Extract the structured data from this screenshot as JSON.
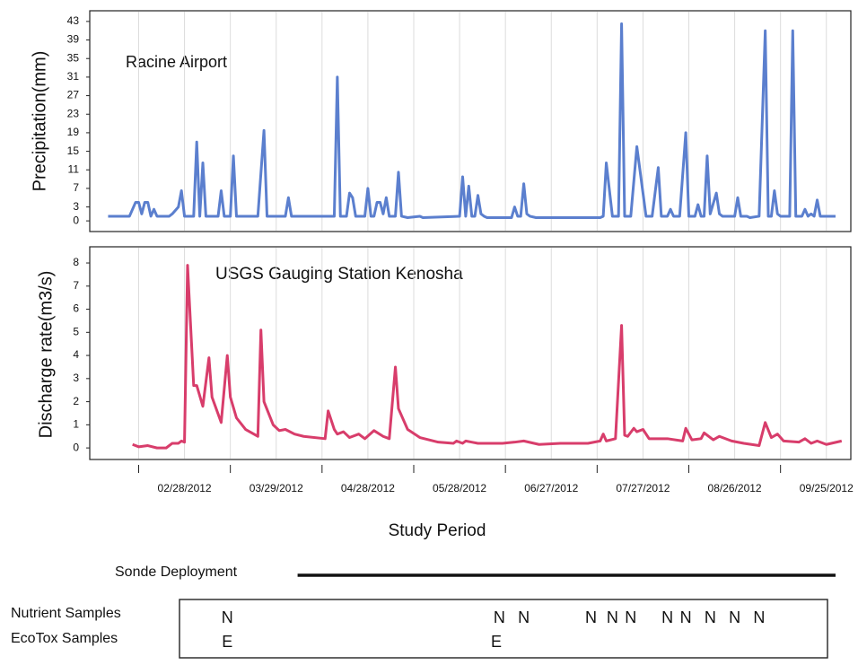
{
  "chart_data": [
    {
      "type": "line",
      "title": "Racine Airport",
      "ylabel": "Precipitation(mm)",
      "xlim": [
        "2012-01-28",
        "2012-10-03"
      ],
      "ylim": [
        -2.3,
        45.3
      ],
      "yticks": [
        0,
        3,
        7,
        11,
        15,
        19,
        23,
        27,
        31,
        35,
        39,
        43
      ],
      "grid": true,
      "series": [
        {
          "color": "#5b7fce",
          "x": [
            "2012-02-03",
            "2012-02-10",
            "2012-02-12",
            "2012-02-13",
            "2012-02-14",
            "2012-02-15",
            "2012-02-16",
            "2012-02-17",
            "2012-02-18",
            "2012-02-19",
            "2012-02-23",
            "2012-02-24",
            "2012-02-26",
            "2012-02-27",
            "2012-02-28",
            "2012-03-02",
            "2012-03-03",
            "2012-03-04",
            "2012-03-05",
            "2012-03-06",
            "2012-03-10",
            "2012-03-11",
            "2012-03-12",
            "2012-03-14",
            "2012-03-15",
            "2012-03-16",
            "2012-03-23",
            "2012-03-25",
            "2012-03-26",
            "2012-04-01",
            "2012-04-02",
            "2012-04-03",
            "2012-04-17",
            "2012-04-18",
            "2012-04-19",
            "2012-04-21",
            "2012-04-22",
            "2012-04-23",
            "2012-04-24",
            "2012-04-27",
            "2012-04-28",
            "2012-04-29",
            "2012-04-30",
            "2012-05-01",
            "2012-05-02",
            "2012-05-03",
            "2012-05-04",
            "2012-05-05",
            "2012-05-07",
            "2012-05-08",
            "2012-05-09",
            "2012-05-11",
            "2012-05-15",
            "2012-05-16",
            "2012-05-28",
            "2012-05-29",
            "2012-05-30",
            "2012-05-31",
            "2012-06-01",
            "2012-06-02",
            "2012-06-03",
            "2012-06-04",
            "2012-06-05",
            "2012-06-06",
            "2012-06-14",
            "2012-06-15",
            "2012-06-16",
            "2012-06-17",
            "2012-06-18",
            "2012-06-19",
            "2012-06-20",
            "2012-06-22",
            "2012-07-13",
            "2012-07-14",
            "2012-07-15",
            "2012-07-17",
            "2012-07-18",
            "2012-07-19",
            "2012-07-20",
            "2012-07-21",
            "2012-07-23",
            "2012-07-25",
            "2012-07-27",
            "2012-07-28",
            "2012-07-30",
            "2012-08-01",
            "2012-08-02",
            "2012-08-04",
            "2012-08-05",
            "2012-08-06",
            "2012-08-08",
            "2012-08-10",
            "2012-08-11",
            "2012-08-13",
            "2012-08-14",
            "2012-08-15",
            "2012-08-16",
            "2012-08-17",
            "2012-08-18",
            "2012-08-20",
            "2012-08-21",
            "2012-08-22",
            "2012-08-26",
            "2012-08-27",
            "2012-08-28",
            "2012-08-30",
            "2012-08-31",
            "2012-09-03",
            "2012-09-05",
            "2012-09-06",
            "2012-09-07",
            "2012-09-08",
            "2012-09-09",
            "2012-09-10",
            "2012-09-13",
            "2012-09-14",
            "2012-09-15",
            "2012-09-17",
            "2012-09-18",
            "2012-09-19",
            "2012-09-20",
            "2012-09-21",
            "2012-09-22",
            "2012-09-23",
            "2012-09-28"
          ],
          "values": [
            1,
            1,
            4,
            4,
            1.5,
            4,
            4,
            1,
            2.5,
            1,
            1,
            1.5,
            3,
            6.5,
            1,
            1,
            17,
            1,
            12.5,
            1,
            1,
            6.5,
            1,
            1,
            14,
            1,
            1,
            19.5,
            1,
            1,
            5,
            1,
            1,
            31,
            1,
            1,
            6,
            5,
            1,
            1,
            7,
            1,
            1,
            4,
            4,
            1.5,
            5,
            1,
            1,
            10.5,
            1,
            0.7,
            1,
            0.7,
            1,
            9.5,
            1,
            7.5,
            1,
            1,
            5.5,
            1.5,
            1,
            0.7,
            0.7,
            3,
            1,
            1,
            8,
            1.5,
            1,
            0.7,
            0.7,
            1,
            12.5,
            1,
            1,
            1,
            42.5,
            1,
            1,
            16,
            6,
            1,
            1,
            11.5,
            1,
            1,
            2.5,
            1,
            1,
            19,
            1,
            1,
            3.5,
            1,
            1,
            14,
            1.5,
            6,
            1.5,
            1,
            1,
            5,
            1,
            1,
            0.7,
            1,
            41,
            1,
            1,
            6.5,
            1.5,
            1,
            1,
            41,
            1,
            1,
            2.5,
            1,
            1.5,
            1,
            4.5,
            1,
            1
          ]
        }
      ]
    },
    {
      "type": "line",
      "title": "USGS Gauging Station Kenosha",
      "ylabel": "Discharge rate(m3/s)",
      "xlabel": "Study Period",
      "xlim": [
        "2012-01-28",
        "2012-10-03"
      ],
      "ylim": [
        -0.5,
        8.7
      ],
      "yticks": [
        0,
        1,
        2,
        3,
        4,
        5,
        6,
        7,
        8
      ],
      "grid": true,
      "xticks": [
        {
          "value": "2012-02-28",
          "label": "02/28/2012"
        },
        {
          "value": "2012-03-29",
          "label": "03/29/2012"
        },
        {
          "value": "2012-04-28",
          "label": "04/28/2012"
        },
        {
          "value": "2012-05-28",
          "label": "05/28/2012"
        },
        {
          "value": "2012-06-27",
          "label": "06/27/2012"
        },
        {
          "value": "2012-07-27",
          "label": "07/27/2012"
        },
        {
          "value": "2012-08-26",
          "label": "08/26/2012"
        },
        {
          "value": "2012-09-25",
          "label": "09/25/2012"
        }
      ],
      "xminorticks": [
        "2012-02-13",
        "2012-03-14",
        "2012-04-13",
        "2012-05-13",
        "2012-06-12",
        "2012-07-12",
        "2012-08-11",
        "2012-09-10"
      ],
      "series": [
        {
          "color": "#d83d6b",
          "x": [
            "2012-02-11",
            "2012-02-13",
            "2012-02-16",
            "2012-02-19",
            "2012-02-22",
            "2012-02-24",
            "2012-02-26",
            "2012-02-27",
            "2012-02-28",
            "2012-02-29",
            "2012-03-02",
            "2012-03-03",
            "2012-03-05",
            "2012-03-07",
            "2012-03-08",
            "2012-03-11",
            "2012-03-13",
            "2012-03-14",
            "2012-03-16",
            "2012-03-19",
            "2012-03-23",
            "2012-03-24",
            "2012-03-25",
            "2012-03-28",
            "2012-03-30",
            "2012-04-01",
            "2012-04-04",
            "2012-04-07",
            "2012-04-14",
            "2012-04-15",
            "2012-04-17",
            "2012-04-18",
            "2012-04-20",
            "2012-04-22",
            "2012-04-25",
            "2012-04-27",
            "2012-04-30",
            "2012-05-03",
            "2012-05-05",
            "2012-05-07",
            "2012-05-08",
            "2012-05-11",
            "2012-05-15",
            "2012-05-21",
            "2012-05-26",
            "2012-05-27",
            "2012-05-29",
            "2012-05-30",
            "2012-06-01",
            "2012-06-03",
            "2012-06-11",
            "2012-06-15",
            "2012-06-18",
            "2012-06-23",
            "2012-06-30",
            "2012-07-09",
            "2012-07-13",
            "2012-07-14",
            "2012-07-15",
            "2012-07-18",
            "2012-07-20",
            "2012-07-21",
            "2012-07-22",
            "2012-07-24",
            "2012-07-25",
            "2012-07-27",
            "2012-07-29",
            "2012-08-04",
            "2012-08-09",
            "2012-08-10",
            "2012-08-12",
            "2012-08-15",
            "2012-08-16",
            "2012-08-19",
            "2012-08-21",
            "2012-08-25",
            "2012-08-29",
            "2012-09-03",
            "2012-09-05",
            "2012-09-07",
            "2012-09-09",
            "2012-09-11",
            "2012-09-16",
            "2012-09-18",
            "2012-09-20",
            "2012-09-22",
            "2012-09-25",
            "2012-09-30"
          ],
          "values": [
            0.15,
            0.05,
            0.1,
            0,
            0,
            0.2,
            0.2,
            0.3,
            0.25,
            7.9,
            2.7,
            2.7,
            1.8,
            3.9,
            2.2,
            1.1,
            4,
            2.2,
            1.3,
            0.8,
            0.5,
            5.1,
            2,
            1,
            0.75,
            0.8,
            0.6,
            0.5,
            0.4,
            1.6,
            0.8,
            0.6,
            0.7,
            0.45,
            0.6,
            0.4,
            0.75,
            0.5,
            0.4,
            3.5,
            1.7,
            0.8,
            0.45,
            0.25,
            0.2,
            0.3,
            0.2,
            0.3,
            0.25,
            0.2,
            0.2,
            0.25,
            0.3,
            0.15,
            0.2,
            0.2,
            0.3,
            0.6,
            0.3,
            0.4,
            5.3,
            0.55,
            0.5,
            0.85,
            0.7,
            0.8,
            0.4,
            0.4,
            0.3,
            0.85,
            0.35,
            0.4,
            0.65,
            0.35,
            0.5,
            0.3,
            0.2,
            0.1,
            1.1,
            0.45,
            0.6,
            0.3,
            0.25,
            0.4,
            0.2,
            0.3,
            0.15,
            0.3
          ]
        }
      ]
    }
  ],
  "sonde_deployment": {
    "label": "Sonde Deployment",
    "start": "2012-04-05",
    "end": "2012-09-28"
  },
  "nutrient_samples": {
    "label": "Nutrient Samples",
    "marker": "N",
    "dates": [
      "2012-03-13",
      "2012-06-10",
      "2012-06-18",
      "2012-07-10",
      "2012-07-17",
      "2012-07-23",
      "2012-08-04",
      "2012-08-10",
      "2012-08-18",
      "2012-08-26",
      "2012-09-03"
    ]
  },
  "ecotox_samples": {
    "label": "EcoTox Samples",
    "marker": "E",
    "dates": [
      "2012-03-13",
      "2012-06-09"
    ]
  }
}
